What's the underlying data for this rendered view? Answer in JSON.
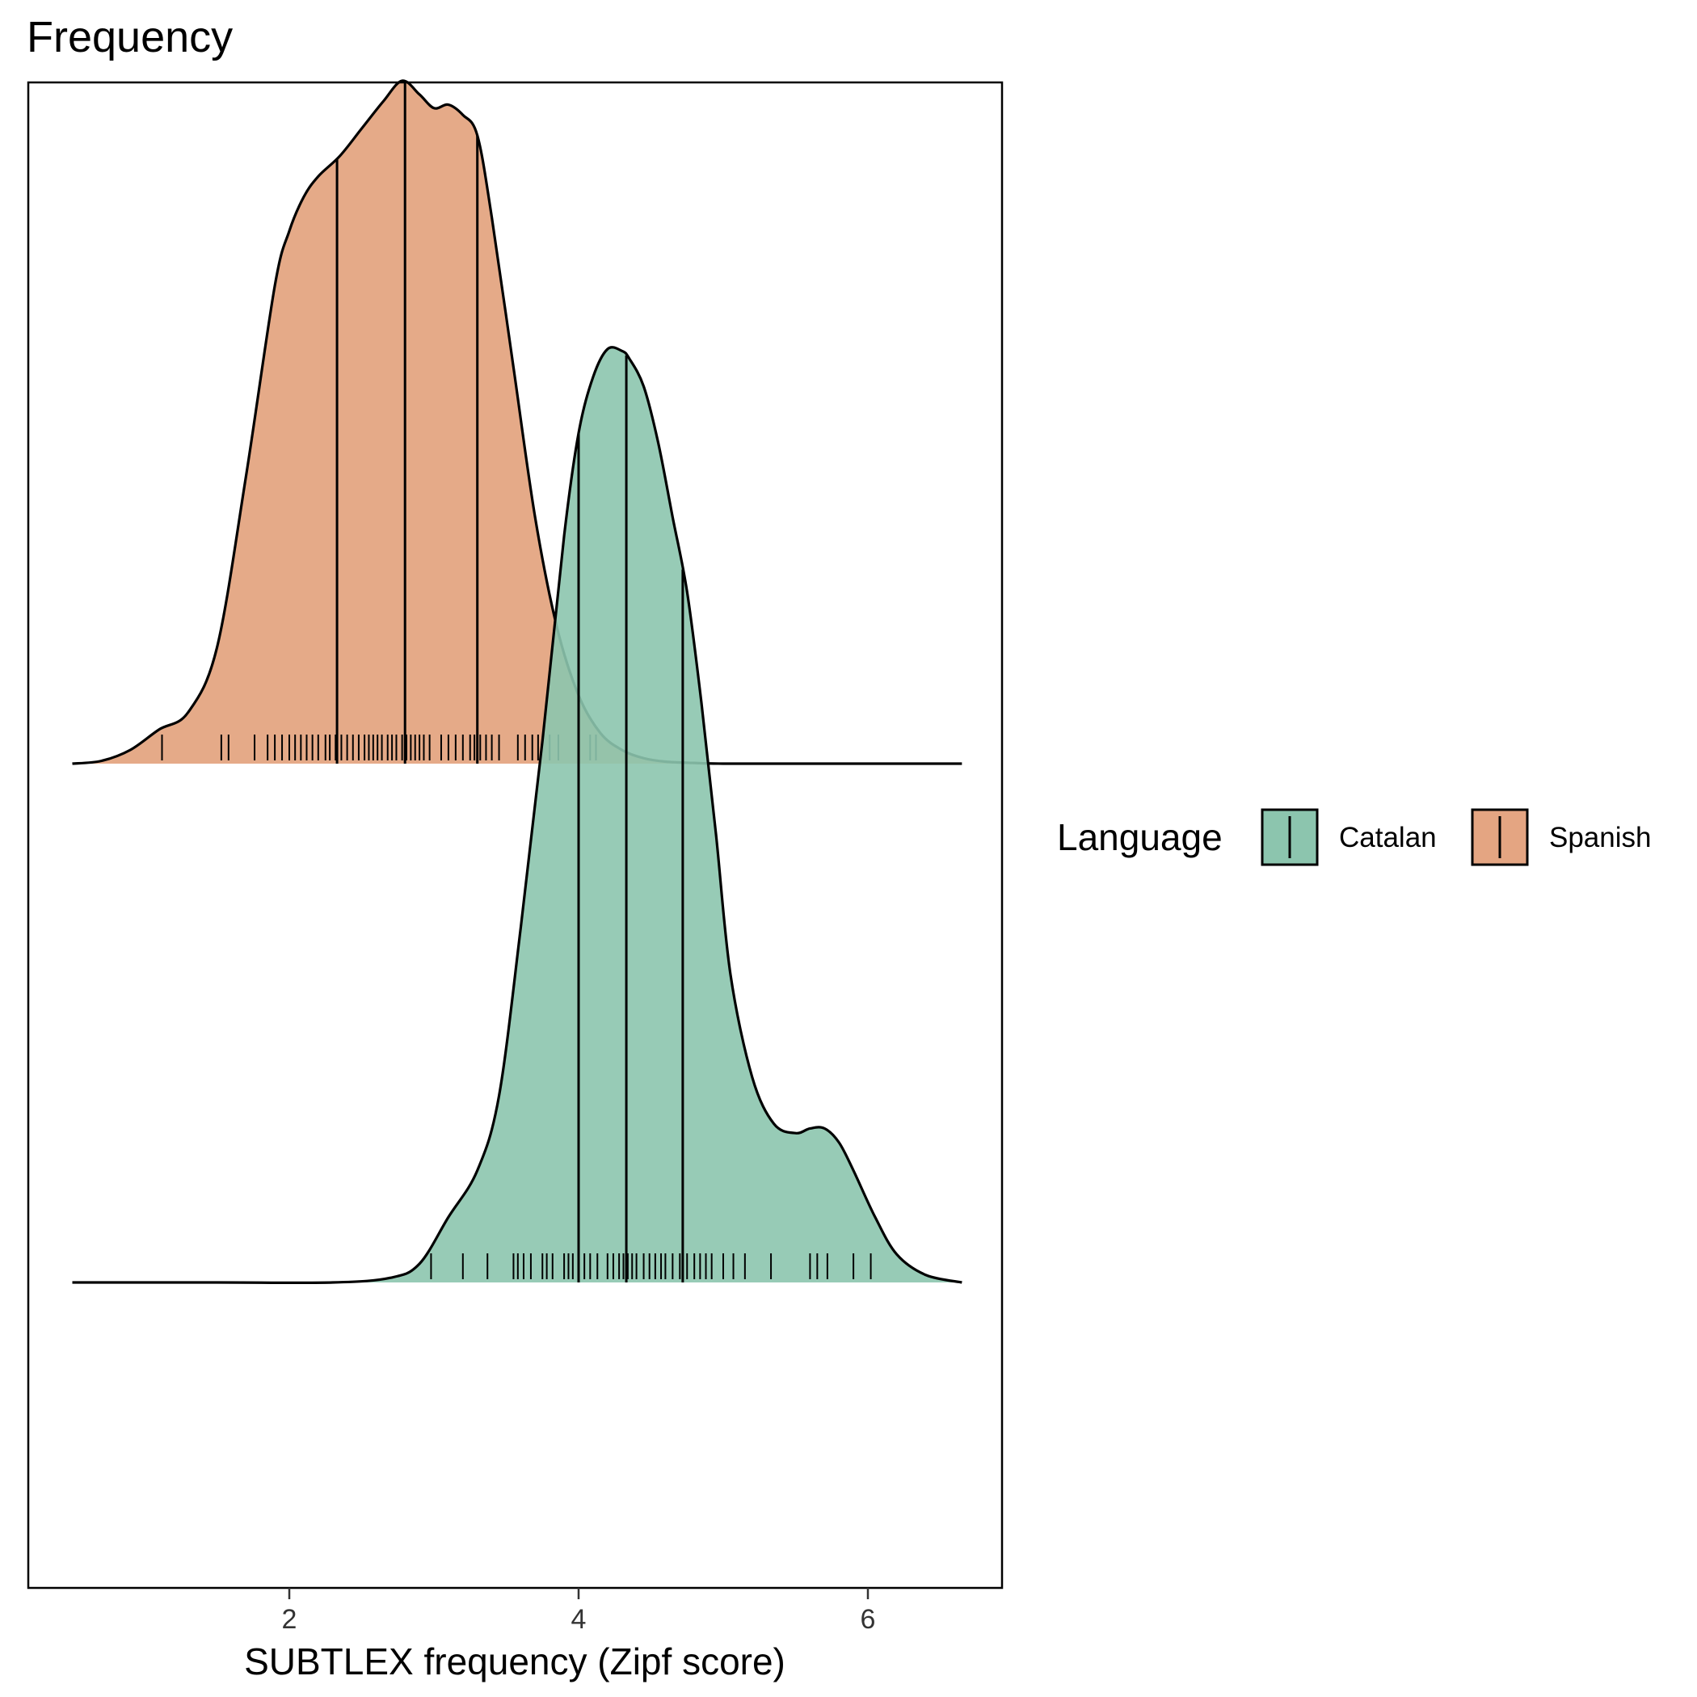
{
  "chart_data": {
    "type": "ridgeline-density",
    "title": "Frequency",
    "xlabel": "SUBTLEX frequency (Zipf score)",
    "ylabel": "",
    "xlim": [
      0.45,
      7.2
    ],
    "x_ticks": [
      2,
      4,
      6
    ],
    "x_tick_labels": [
      "2",
      "4",
      "6"
    ],
    "grid": false,
    "legend": {
      "title": "Language",
      "position": "right",
      "entries": [
        {
          "label": "Catalan",
          "color": "#8cc5ae"
        },
        {
          "label": "Spanish",
          "color": "#e4a582"
        }
      ]
    },
    "series": [
      {
        "name": "Spanish",
        "color": "#e4a582",
        "row": 1,
        "density_x": [
          0.5,
          0.7,
          0.9,
          1.1,
          1.3,
          1.5,
          1.7,
          1.9,
          2.0,
          2.1,
          2.2,
          2.35,
          2.5,
          2.65,
          2.78,
          2.9,
          3.0,
          3.1,
          3.2,
          3.3,
          3.4,
          3.55,
          3.7,
          3.85,
          4.0,
          4.15,
          4.3,
          4.45,
          4.6,
          4.8,
          5.0,
          5.5,
          6.0,
          6.65
        ],
        "density_y": [
          0.0,
          0.004,
          0.02,
          0.05,
          0.075,
          0.17,
          0.42,
          0.7,
          0.78,
          0.83,
          0.86,
          0.89,
          0.93,
          0.97,
          1.0,
          0.98,
          0.96,
          0.965,
          0.95,
          0.92,
          0.8,
          0.58,
          0.36,
          0.2,
          0.1,
          0.045,
          0.02,
          0.008,
          0.003,
          0.001,
          0.0,
          0.0,
          0.0,
          0.0
        ],
        "quantile_lines": [
          2.33,
          2.8,
          3.3
        ],
        "rug": [
          1.12,
          1.53,
          1.58,
          1.76,
          1.85,
          1.9,
          1.95,
          2.0,
          2.04,
          2.08,
          2.12,
          2.16,
          2.2,
          2.25,
          2.28,
          2.32,
          2.36,
          2.4,
          2.44,
          2.48,
          2.52,
          2.55,
          2.58,
          2.61,
          2.64,
          2.68,
          2.71,
          2.74,
          2.78,
          2.81,
          2.84,
          2.87,
          2.9,
          2.93,
          2.97,
          3.05,
          3.1,
          3.15,
          3.2,
          3.25,
          3.28,
          3.32,
          3.36,
          3.4,
          3.45,
          3.58,
          3.63,
          3.68,
          3.72,
          3.8,
          3.86,
          4.08,
          4.12
        ]
      },
      {
        "name": "Catalan",
        "color": "#8cc5ae",
        "row": 0,
        "density_x": [
          0.5,
          1.5,
          2.3,
          2.7,
          2.9,
          3.1,
          3.3,
          3.45,
          3.6,
          3.75,
          3.9,
          4.0,
          4.1,
          4.2,
          4.3,
          4.35,
          4.45,
          4.55,
          4.65,
          4.75,
          4.85,
          4.95,
          5.05,
          5.2,
          5.35,
          5.5,
          5.6,
          5.7,
          5.8,
          5.9,
          6.05,
          6.2,
          6.4,
          6.65
        ],
        "density_y": [
          0.0,
          0.0,
          0.0,
          0.005,
          0.02,
          0.07,
          0.12,
          0.2,
          0.38,
          0.58,
          0.8,
          0.91,
          0.97,
          1.0,
          0.998,
          0.99,
          0.96,
          0.9,
          0.82,
          0.74,
          0.62,
          0.48,
          0.33,
          0.22,
          0.17,
          0.16,
          0.165,
          0.165,
          0.15,
          0.12,
          0.07,
          0.03,
          0.008,
          0.0
        ],
        "quantile_lines": [
          4.0,
          4.33,
          4.72
        ],
        "rug": [
          2.98,
          3.2,
          3.37,
          3.55,
          3.58,
          3.62,
          3.67,
          3.75,
          3.78,
          3.82,
          3.9,
          3.93,
          3.96,
          4.0,
          4.04,
          4.08,
          4.13,
          4.2,
          4.24,
          4.28,
          4.31,
          4.34,
          4.37,
          4.4,
          4.45,
          4.49,
          4.53,
          4.57,
          4.6,
          4.65,
          4.7,
          4.75,
          4.8,
          4.84,
          4.88,
          4.92,
          5.0,
          5.07,
          5.15,
          5.33,
          5.6,
          5.65,
          5.72,
          5.9,
          6.02
        ]
      }
    ]
  }
}
